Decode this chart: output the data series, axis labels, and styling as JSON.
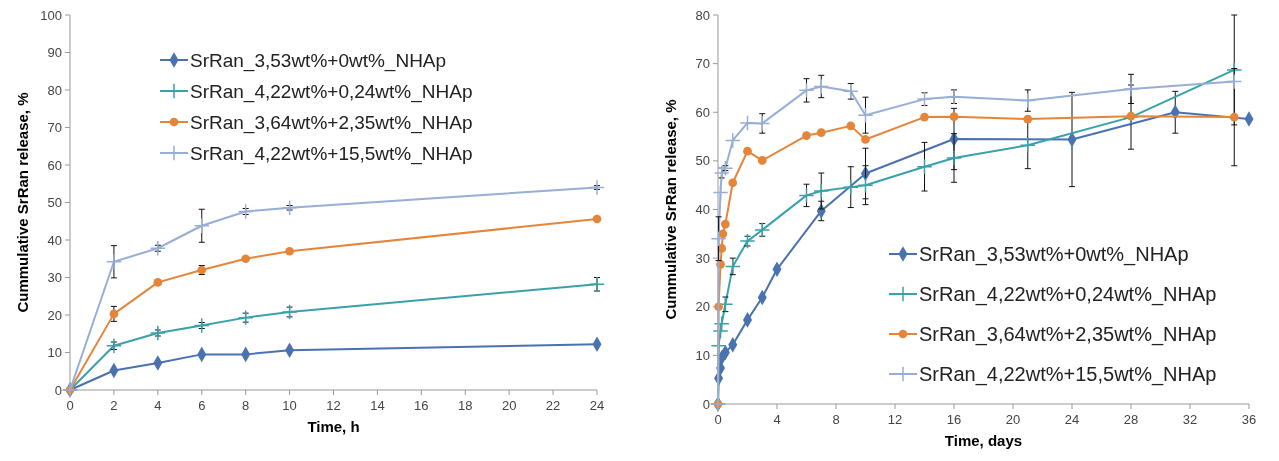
{
  "chart_data": [
    {
      "type": "line",
      "xlabel": "Time, h",
      "ylabel": "Cummulative SrRan release, %",
      "x": [
        0,
        2,
        4,
        6,
        8,
        10,
        24
      ],
      "xlim": [
        0,
        24
      ],
      "xticks": [
        0,
        2,
        4,
        6,
        8,
        10,
        12,
        14,
        16,
        18,
        20,
        22,
        24
      ],
      "ylim": [
        0,
        100
      ],
      "yticks": [
        0,
        10,
        20,
        30,
        40,
        50,
        60,
        70,
        80,
        90,
        100
      ],
      "grid": false,
      "legend": "top",
      "series": [
        {
          "name": "SrRan_3,53wt%+0wt%_NHAp",
          "color": "#4a72b0",
          "marker": "diamond",
          "values": [
            0,
            5.2,
            7.2,
            9.5,
            9.5,
            10.6,
            12.2
          ]
        },
        {
          "name": "SrRan_4,22wt%+0,24wt%_NHAp",
          "color": "#3aa1aa",
          "marker": "cross",
          "values": [
            0,
            11.8,
            15.2,
            17.2,
            19.3,
            20.8,
            28.2
          ],
          "errors": [
            null,
            1,
            0.8,
            0.8,
            1.2,
            1.3,
            1.8
          ]
        },
        {
          "name": "SrRan_3,64wt%+2,35wt%_NHAp",
          "color": "#e5853a",
          "marker": "circle",
          "values": [
            0,
            20.3,
            28.7,
            32,
            35,
            37,
            45.6
          ],
          "errors": [
            null,
            2,
            null,
            1.2,
            null,
            null,
            null
          ]
        },
        {
          "name": "SrRan_4,22wt%+15,5wt%_NHAp",
          "color": "#98aed6",
          "marker": "cross",
          "values": [
            0,
            34.2,
            37.8,
            43.8,
            47.6,
            48.6,
            54
          ],
          "errors": [
            null,
            4.3,
            0.8,
            4.4,
            0.8,
            0.6,
            0.5
          ]
        }
      ]
    },
    {
      "type": "line",
      "xlabel": "Time, days",
      "ylabel": "Cummulative SrRan release, %",
      "xlim": [
        0,
        36
      ],
      "xticks": [
        0,
        4,
        8,
        12,
        16,
        20,
        24,
        28,
        32,
        36
      ],
      "ylim": [
        0,
        80
      ],
      "yticks": [
        0,
        10,
        20,
        30,
        40,
        50,
        60,
        70,
        80
      ],
      "grid": false,
      "legend": "bottom right",
      "series": [
        {
          "name": "SrRan_3,53wt%+0wt%_NHAp",
          "color": "#4a72b0",
          "marker": "diamond",
          "x": [
            0,
            0.04,
            0.17,
            0.25,
            0.5,
            1,
            2,
            3,
            4,
            7,
            10,
            16,
            24,
            31,
            36
          ],
          "values": [
            0,
            5.3,
            7.4,
            9.5,
            10.6,
            12.2,
            17.3,
            21.9,
            27.7,
            39.7,
            47.4,
            54.5,
            54.4,
            60,
            58.6
          ],
          "errors": [
            null,
            null,
            null,
            null,
            null,
            null,
            null,
            null,
            null,
            2,
            5.2,
            6.3,
            9.7,
            4.3,
            null
          ]
        },
        {
          "name": "SrRan_4,22wt%+0,24wt%_NHAp",
          "color": "#3aa1aa",
          "marker": "cross",
          "x": [
            0,
            0.04,
            0.17,
            0.25,
            0.5,
            1,
            2,
            3,
            6,
            7,
            9,
            10,
            14,
            16,
            21,
            28,
            35
          ],
          "values": [
            0,
            12,
            15,
            16.5,
            20.5,
            28.3,
            33.5,
            35.8,
            42.9,
            43.8,
            44.6,
            45,
            48.8,
            50.6,
            53.2,
            59,
            68.7
          ],
          "errors": [
            null,
            null,
            null,
            null,
            1.5,
            1.7,
            1,
            1.3,
            2.3,
            3.7,
            4.2,
            4,
            5,
            5,
            4.8,
            6.6,
            11.3
          ]
        },
        {
          "name": "SrRan_3,64wt%+2,35wt%_NHAp",
          "color": "#e5853a",
          "marker": "circle",
          "x": [
            0,
            0.04,
            0.17,
            0.25,
            0.33,
            0.5,
            1,
            2,
            3,
            6,
            7,
            9,
            10,
            14,
            16,
            21,
            28,
            35
          ],
          "values": [
            0,
            20,
            28.7,
            32,
            35,
            37,
            45.5,
            52,
            50.1,
            55.2,
            55.8,
            57.2,
            54.4,
            59,
            59.1,
            58.6,
            59.2,
            59
          ],
          "errors": [
            null,
            null,
            null,
            null,
            null,
            null,
            null,
            null,
            null,
            null,
            null,
            null,
            null,
            null,
            null,
            null,
            null,
            10
          ]
        },
        {
          "name": "SrRan_4,22wt%+15,5wt%_NHAp",
          "color": "#98aed6",
          "marker": "cross",
          "x": [
            0,
            0.04,
            0.17,
            0.25,
            0.5,
            1,
            2,
            3,
            6,
            7,
            9,
            10,
            14,
            16,
            21,
            28,
            35
          ],
          "values": [
            0,
            34,
            43.5,
            47.5,
            48.5,
            54.2,
            57.8,
            57.7,
            64.5,
            65.3,
            64.3,
            59.4,
            62.7,
            63.2,
            62.4,
            64.8,
            66.3
          ],
          "errors": [
            null,
            4.5,
            null,
            1,
            0.5,
            null,
            null,
            2,
            2.4,
            2.3,
            1.6,
            3.7,
            1.3,
            1.4,
            2.2,
            3,
            null
          ]
        }
      ]
    }
  ]
}
